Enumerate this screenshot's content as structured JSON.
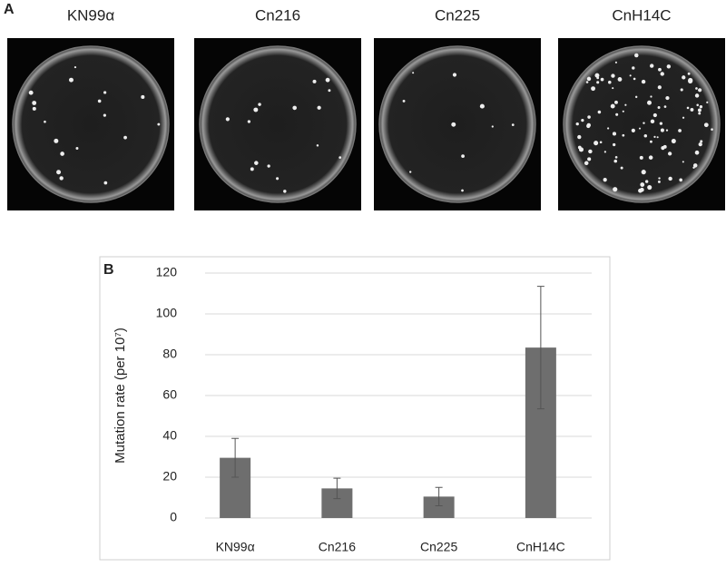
{
  "panels": {
    "a_label": "A",
    "b_label": "B"
  },
  "plates": [
    {
      "label": "KN99α"
    },
    {
      "label": "Cn216"
    },
    {
      "label": "Cn225"
    },
    {
      "label": "CnH14C"
    }
  ],
  "chart_data": {
    "type": "bar",
    "y_label": "Mutation rate (per 10⁷)",
    "categories": [
      "KN99α",
      "Cn216",
      "Cn225",
      "CnH14C"
    ],
    "values": [
      29.5,
      14.5,
      10.5,
      83.5
    ],
    "errors": [
      9.5,
      5,
      4.5,
      30
    ],
    "color": "#6e6e6e",
    "error_color": "#555555",
    "ylim": [
      0,
      120
    ],
    "yticks": [
      0,
      20,
      40,
      60,
      80,
      100,
      120
    ],
    "grid": true
  }
}
